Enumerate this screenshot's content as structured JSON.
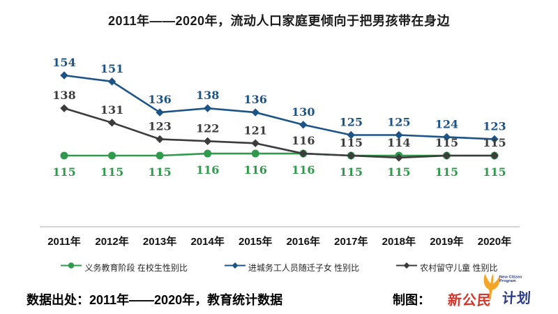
{
  "title": "2011年——2020年，流动人口家庭更倾向于把男孩带在身边",
  "chart_data": {
    "type": "line",
    "categories": [
      "2011年",
      "2012年",
      "2013年",
      "2014年",
      "2015年",
      "2016年",
      "2017年",
      "2018年",
      "2019年",
      "2020年"
    ],
    "series": [
      {
        "name": "义务教育阶段 在校生性别比",
        "values": [
          115,
          115,
          115,
          116,
          116,
          116,
          115,
          115,
          115,
          115
        ],
        "color": "#2f9a4c",
        "marker": "circle",
        "label_position": "below",
        "label_offset": 29
      },
      {
        "name": "进城务工人员随迁子女 性别比",
        "values": [
          154,
          151,
          136,
          138,
          136,
          130,
          125,
          125,
          124,
          123
        ],
        "color": "#1d5488",
        "marker": "diamond",
        "label_position": "above",
        "label_offset": -13
      },
      {
        "name": "农村留守儿童 性别比",
        "values": [
          138,
          131,
          123,
          122,
          121,
          116,
          115,
          114,
          115,
          115
        ],
        "color": "#3c3c3c",
        "marker": "diamond",
        "label_position": "above",
        "label_offset": -13,
        "label_clamp_to_series": 0
      }
    ],
    "ylim": [
      110,
      160
    ],
    "grid": false,
    "legend_position": "bottom",
    "axis_color": "#a8a8a8"
  },
  "footer": {
    "source_label": "数据出处：2011年——2020年，教育统计数据",
    "credit_label": "制图：",
    "logo": {
      "zh_red": "新公民",
      "zh_blue": "计划",
      "en_line1": "New Citizen",
      "en_line2": "Program",
      "leaf_icon": "ginkgo-leaf-icon",
      "leaf_color": "#f5a528",
      "red_color": "#d5362c",
      "blue_color": "#2b3a8c"
    }
  }
}
